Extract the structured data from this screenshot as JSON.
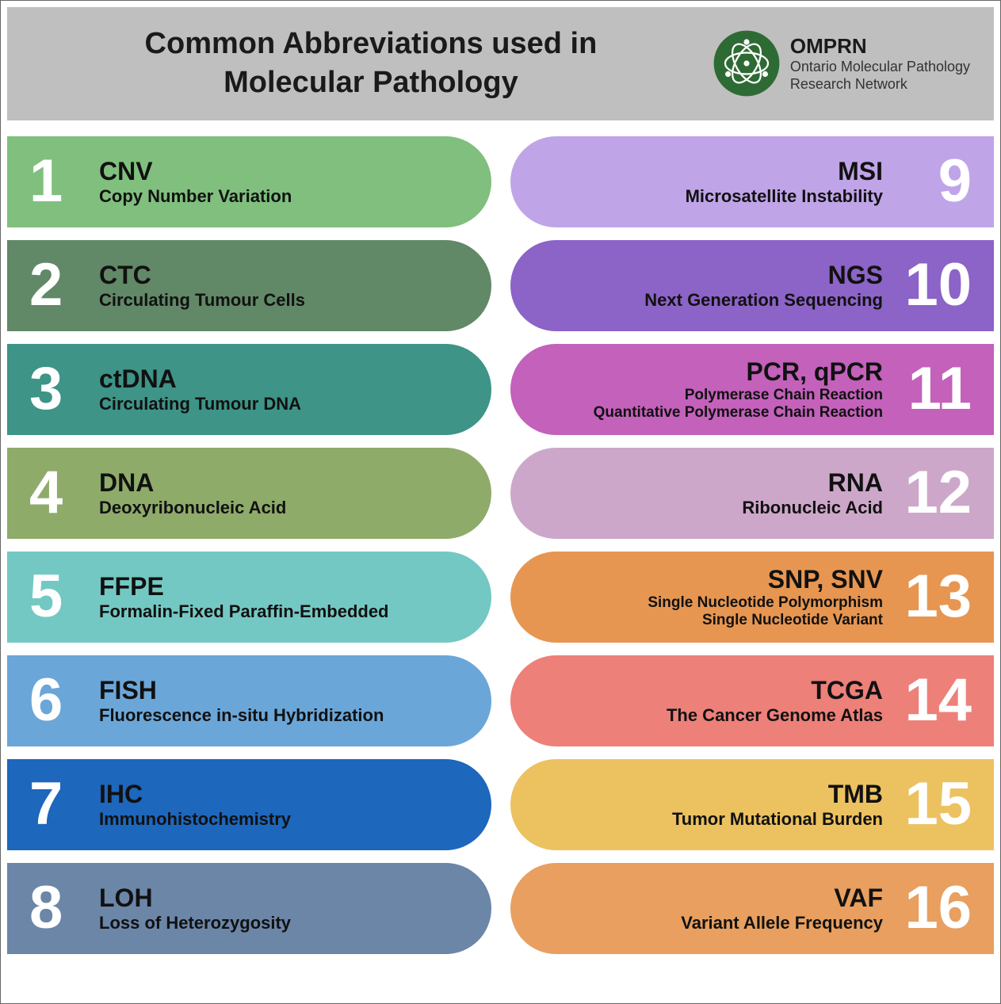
{
  "header": {
    "title_line1": "Common Abbreviations used in",
    "title_line2": "Molecular Pathology",
    "logo_name": "OMPRN",
    "logo_sub1": "Ontario Molecular Pathology",
    "logo_sub2": "Research Network",
    "logo_color": "#2e6b34"
  },
  "left": [
    {
      "n": "1",
      "abbr": "CNV",
      "def": "Copy Number Variation",
      "color": "#80bf7e"
    },
    {
      "n": "2",
      "abbr": "CTC",
      "def": "Circulating Tumour Cells",
      "color": "#618867"
    },
    {
      "n": "3",
      "abbr": "ctDNA",
      "def": "Circulating Tumour DNA",
      "color": "#3d9487"
    },
    {
      "n": "4",
      "abbr": "DNA",
      "def": "Deoxyribonucleic Acid",
      "color": "#8eab6a"
    },
    {
      "n": "5",
      "abbr": "FFPE",
      "def": "Formalin-Fixed Paraffin-Embedded",
      "color": "#74c8c3"
    },
    {
      "n": "6",
      "abbr": "FISH",
      "def": "Fluorescence in-situ Hybridization",
      "color": "#6ba6d8"
    },
    {
      "n": "7",
      "abbr": "IHC",
      "def": "Immunohistochemistry",
      "color": "#1d67bd"
    },
    {
      "n": "8",
      "abbr": "LOH",
      "def": "Loss of Heterozygosity",
      "color": "#6b86a7"
    }
  ],
  "right": [
    {
      "n": "9",
      "abbr": "MSI",
      "def": "Microsatellite Instability",
      "color": "#c0a4e8"
    },
    {
      "n": "10",
      "abbr": "NGS",
      "def": "Next Generation Sequencing",
      "color": "#8c63c7"
    },
    {
      "n": "11",
      "abbr": "PCR, qPCR",
      "def": "Polymerase Chain Reaction",
      "def2": "Quantitative Polymerase Chain Reaction",
      "color": "#c361bb",
      "small": true
    },
    {
      "n": "12",
      "abbr": "RNA",
      "def": "Ribonucleic Acid",
      "color": "#cda7ca"
    },
    {
      "n": "13",
      "abbr": "SNP, SNV",
      "def": "Single Nucleotide Polymorphism",
      "def2": "Single Nucleotide Variant",
      "color": "#e79651",
      "small": true
    },
    {
      "n": "14",
      "abbr": "TCGA",
      "def": "The Cancer Genome Atlas",
      "color": "#ed8079"
    },
    {
      "n": "15",
      "abbr": "TMB",
      "def": "Tumor Mutational Burden",
      "color": "#ecc260"
    },
    {
      "n": "16",
      "abbr": "VAF",
      "def": "Variant Allele Frequency",
      "color": "#e89f5f"
    }
  ]
}
